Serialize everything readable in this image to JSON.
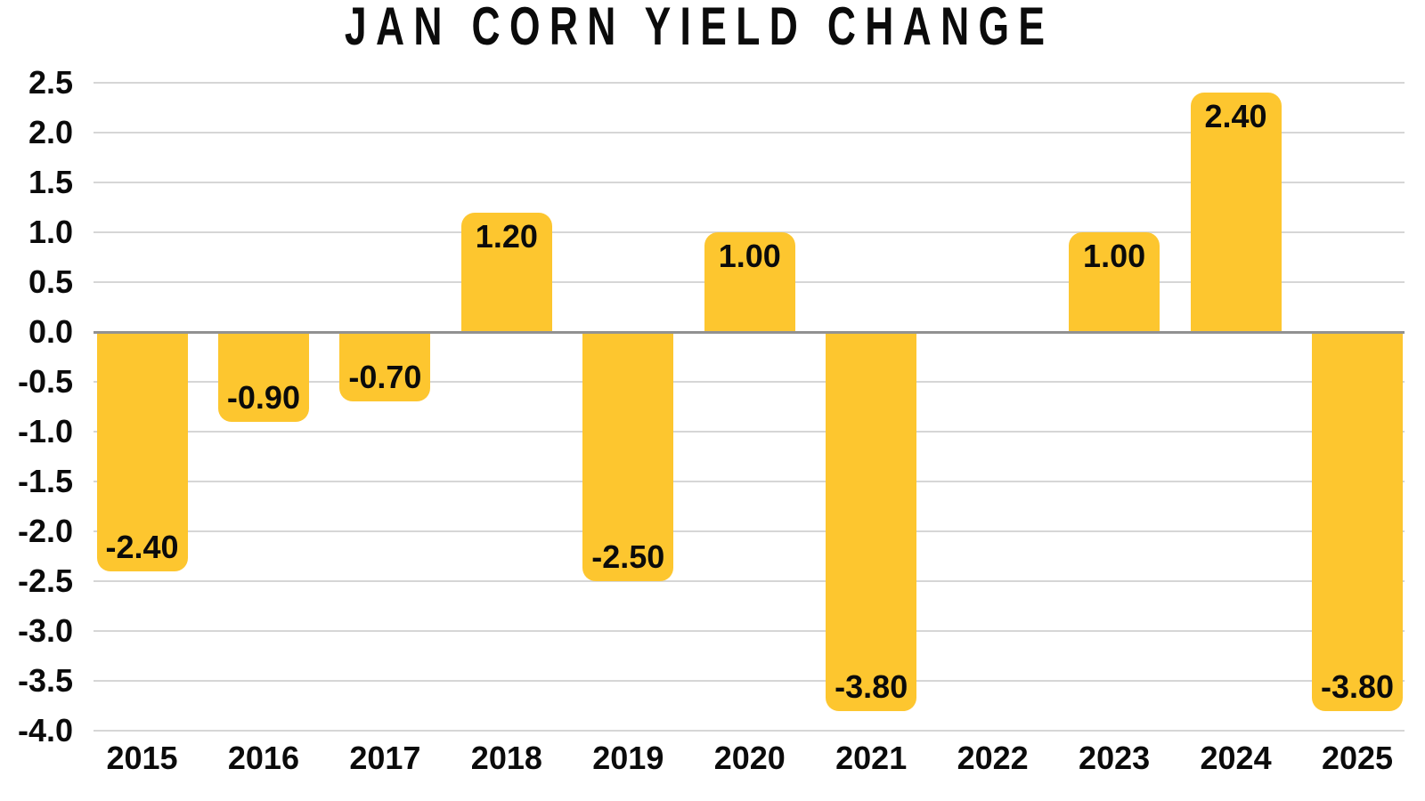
{
  "chart_data": {
    "type": "bar",
    "title": "JAN CORN YIELD CHANGE",
    "xlabel": "",
    "ylabel": "",
    "categories": [
      "2015",
      "2016",
      "2017",
      "2018",
      "2019",
      "2020",
      "2021",
      "2022",
      "2023",
      "2024",
      "2025"
    ],
    "values": [
      -2.4,
      -0.9,
      -0.7,
      1.2,
      -2.5,
      1.0,
      -3.8,
      0,
      1.0,
      2.4,
      -3.8
    ],
    "bar_value_labels": [
      "-2.40",
      "-0.90",
      "-0.70",
      "1.20",
      "-2.50",
      "1.00",
      "-3.80",
      "",
      "1.00",
      "2.40",
      "-3.80"
    ],
    "y_ticks": [
      2.5,
      2.0,
      1.5,
      1.0,
      0.5,
      0.0,
      -0.5,
      -1.0,
      -1.5,
      -2.0,
      -2.5,
      -3.0,
      -3.5,
      -4.0
    ],
    "y_tick_labels": [
      "2.5",
      "2.0",
      "1.5",
      "1.0",
      "0.5",
      "0.0",
      "-0.5",
      "-1.0",
      "-1.5",
      "-2.0",
      "-2.5",
      "-3.0",
      "-3.5",
      "-4.0"
    ],
    "ylim": [
      -4.0,
      2.5
    ],
    "grid": true,
    "legend": false,
    "value_labels_position": "inside-end",
    "colors": {
      "bar": "#FDC62F",
      "text": "#0b0b0b",
      "gridline": "#d6d6d6",
      "zero_line": "#919191",
      "background": "#ffffff"
    }
  }
}
